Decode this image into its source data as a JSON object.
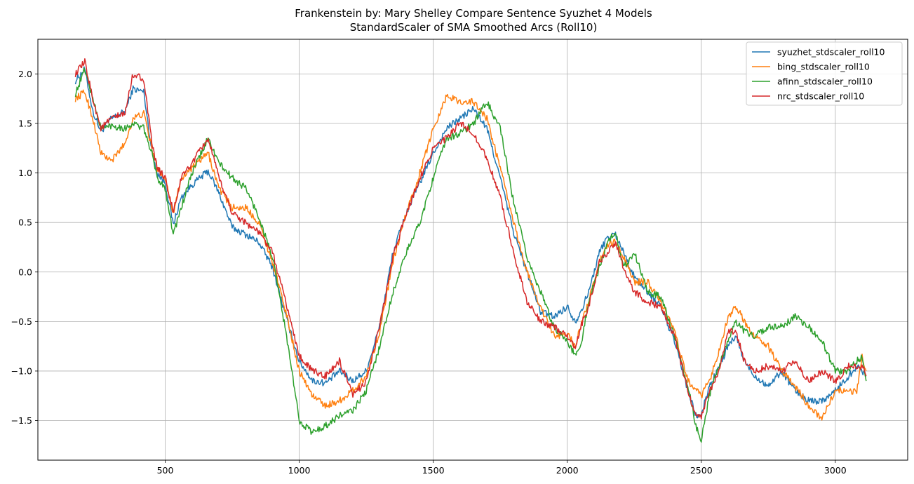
{
  "chart_data": {
    "type": "line",
    "title": [
      "Frankenstein by: Mary Shelley Compare Sentence Syuzhet 4 Models",
      "StandardScaler of SMA Smoothed Arcs (Roll10)"
    ],
    "xlabel": "",
    "ylabel": "",
    "xlim": [
      25,
      3270
    ],
    "ylim": [
      -1.9,
      2.35
    ],
    "xticks": [
      500,
      1000,
      1500,
      2000,
      2500,
      3000
    ],
    "yticks": [
      -1.5,
      -1.0,
      -0.5,
      0.0,
      0.5,
      1.0,
      1.5,
      2.0
    ],
    "ytick_labels": [
      "−1.5",
      "−1.0",
      "−0.5",
      "0.0",
      "0.5",
      "1.0",
      "1.5",
      "2.0"
    ],
    "grid": true,
    "legend_position": "top-right",
    "series": [
      {
        "name": "syuzhet_stdscaler_roll10",
        "color": "#1f77b4",
        "x": [
          165,
          200,
          230,
          260,
          300,
          350,
          380,
          420,
          450,
          470,
          500,
          530,
          560,
          600,
          660,
          700,
          750,
          800,
          850,
          900,
          950,
          1000,
          1050,
          1100,
          1150,
          1200,
          1250,
          1300,
          1350,
          1400,
          1450,
          1500,
          1550,
          1600,
          1650,
          1700,
          1750,
          1800,
          1850,
          1900,
          1950,
          2000,
          2030,
          2050,
          2080,
          2120,
          2150,
          2180,
          2210,
          2250,
          2300,
          2350,
          2400,
          2450,
          2480,
          2500,
          2530,
          2560,
          2600,
          2630,
          2660,
          2700,
          2750,
          2800,
          2850,
          2900,
          2950,
          3000,
          3050,
          3080,
          3100,
          3115
        ],
        "y": [
          1.93,
          2.05,
          1.62,
          1.42,
          1.55,
          1.62,
          1.85,
          1.82,
          1.22,
          1.0,
          0.9,
          0.48,
          0.75,
          0.88,
          1.02,
          0.8,
          0.45,
          0.38,
          0.3,
          0.05,
          -0.45,
          -0.9,
          -1.1,
          -1.12,
          -1.0,
          -1.1,
          -1.0,
          -0.55,
          0.2,
          0.6,
          0.9,
          1.2,
          1.45,
          1.55,
          1.65,
          1.45,
          0.95,
          0.4,
          0.0,
          -0.4,
          -0.45,
          -0.35,
          -0.5,
          -0.4,
          -0.2,
          0.2,
          0.35,
          0.38,
          0.2,
          -0.05,
          -0.2,
          -0.35,
          -0.7,
          -1.2,
          -1.45,
          -1.45,
          -1.15,
          -1.0,
          -0.75,
          -0.65,
          -0.9,
          -1.05,
          -1.15,
          -1.0,
          -1.2,
          -1.3,
          -1.3,
          -1.2,
          -1.05,
          -0.95,
          -1.0,
          -1.05
        ]
      },
      {
        "name": "bing_stdscaler_roll10",
        "color": "#ff7f0e",
        "x": [
          165,
          200,
          230,
          260,
          300,
          350,
          380,
          420,
          450,
          470,
          500,
          530,
          560,
          600,
          660,
          700,
          750,
          800,
          850,
          900,
          950,
          1000,
          1050,
          1100,
          1150,
          1200,
          1250,
          1300,
          1350,
          1400,
          1450,
          1500,
          1550,
          1600,
          1650,
          1700,
          1750,
          1800,
          1850,
          1900,
          1950,
          2000,
          2030,
          2050,
          2080,
          2120,
          2150,
          2180,
          2210,
          2250,
          2300,
          2350,
          2400,
          2450,
          2480,
          2500,
          2530,
          2560,
          2600,
          2630,
          2660,
          2700,
          2750,
          2800,
          2850,
          2900,
          2950,
          3000,
          3050,
          3080,
          3100,
          3115
        ],
        "y": [
          1.75,
          1.82,
          1.55,
          1.2,
          1.12,
          1.3,
          1.55,
          1.6,
          1.25,
          1.05,
          0.95,
          0.6,
          0.95,
          1.05,
          1.2,
          0.85,
          0.65,
          0.65,
          0.5,
          0.1,
          -0.4,
          -1.0,
          -1.25,
          -1.35,
          -1.3,
          -1.2,
          -1.05,
          -0.6,
          0.1,
          0.6,
          1.0,
          1.45,
          1.78,
          1.72,
          1.72,
          1.55,
          1.05,
          0.5,
          0.0,
          -0.35,
          -0.65,
          -0.62,
          -0.75,
          -0.55,
          -0.3,
          0.1,
          0.28,
          0.3,
          0.15,
          -0.1,
          -0.1,
          -0.3,
          -0.6,
          -1.1,
          -1.2,
          -1.25,
          -1.1,
          -0.85,
          -0.45,
          -0.35,
          -0.5,
          -0.65,
          -0.75,
          -1.0,
          -1.15,
          -1.35,
          -1.48,
          -1.2,
          -1.2,
          -1.2,
          -0.85,
          -1.0
        ]
      },
      {
        "name": "afinn_stdscaler_roll10",
        "color": "#2ca02c",
        "x": [
          165,
          200,
          230,
          260,
          300,
          350,
          380,
          420,
          450,
          470,
          500,
          530,
          560,
          600,
          660,
          700,
          750,
          800,
          850,
          900,
          950,
          1000,
          1050,
          1100,
          1150,
          1200,
          1250,
          1300,
          1350,
          1400,
          1450,
          1500,
          1550,
          1600,
          1650,
          1700,
          1750,
          1800,
          1850,
          1900,
          1950,
          2000,
          2030,
          2050,
          2080,
          2120,
          2150,
          2180,
          2210,
          2250,
          2300,
          2350,
          2400,
          2450,
          2480,
          2500,
          2530,
          2560,
          2600,
          2630,
          2660,
          2700,
          2750,
          2800,
          2850,
          2900,
          2950,
          3000,
          3050,
          3080,
          3100,
          3115
        ],
        "y": [
          1.8,
          2.05,
          1.75,
          1.45,
          1.48,
          1.45,
          1.5,
          1.45,
          1.2,
          0.95,
          0.85,
          0.38,
          0.65,
          1.0,
          1.35,
          1.1,
          0.95,
          0.85,
          0.55,
          0.15,
          -0.6,
          -1.5,
          -1.62,
          -1.55,
          -1.45,
          -1.4,
          -1.2,
          -0.75,
          -0.2,
          0.2,
          0.5,
          0.95,
          1.35,
          1.4,
          1.5,
          1.72,
          1.45,
          0.7,
          0.15,
          -0.2,
          -0.55,
          -0.7,
          -0.85,
          -0.75,
          -0.3,
          0.05,
          0.3,
          0.4,
          0.05,
          0.2,
          -0.2,
          -0.25,
          -0.65,
          -1.15,
          -1.55,
          -1.7,
          -1.25,
          -1.0,
          -0.7,
          -0.5,
          -0.6,
          -0.65,
          -0.55,
          -0.55,
          -0.45,
          -0.55,
          -0.7,
          -1.0,
          -1.0,
          -0.9,
          -0.85,
          -1.1
        ]
      },
      {
        "name": "nrc_stdscaler_roll10",
        "color": "#d62728",
        "x": [
          165,
          200,
          230,
          260,
          300,
          350,
          380,
          420,
          450,
          470,
          500,
          530,
          560,
          600,
          660,
          700,
          750,
          800,
          850,
          900,
          950,
          1000,
          1050,
          1100,
          1150,
          1200,
          1250,
          1300,
          1350,
          1400,
          1450,
          1500,
          1550,
          1600,
          1650,
          1700,
          1750,
          1800,
          1850,
          1900,
          1950,
          2000,
          2030,
          2050,
          2080,
          2120,
          2150,
          2180,
          2210,
          2250,
          2300,
          2350,
          2400,
          2450,
          2480,
          2500,
          2530,
          2560,
          2600,
          2630,
          2660,
          2700,
          2750,
          2800,
          2850,
          2900,
          2950,
          3000,
          3050,
          3080,
          3100,
          3115
        ],
        "y": [
          2.0,
          2.12,
          1.75,
          1.45,
          1.55,
          1.6,
          2.0,
          1.95,
          1.3,
          1.05,
          0.95,
          0.6,
          0.95,
          1.1,
          1.35,
          0.95,
          0.6,
          0.5,
          0.4,
          0.2,
          -0.3,
          -0.85,
          -1.0,
          -1.05,
          -0.9,
          -1.25,
          -1.1,
          -0.55,
          0.15,
          0.6,
          0.95,
          1.25,
          1.35,
          1.5,
          1.4,
          1.15,
          0.75,
          0.2,
          -0.3,
          -0.5,
          -0.55,
          -0.65,
          -0.78,
          -0.55,
          -0.35,
          0.1,
          0.2,
          0.3,
          0.05,
          -0.2,
          -0.3,
          -0.35,
          -0.65,
          -1.2,
          -1.45,
          -1.45,
          -1.2,
          -1.05,
          -0.6,
          -0.6,
          -0.9,
          -1.0,
          -0.95,
          -1.0,
          -0.9,
          -1.1,
          -1.0,
          -1.1,
          -0.95,
          -0.95,
          -0.95,
          -1.05
        ]
      }
    ]
  }
}
